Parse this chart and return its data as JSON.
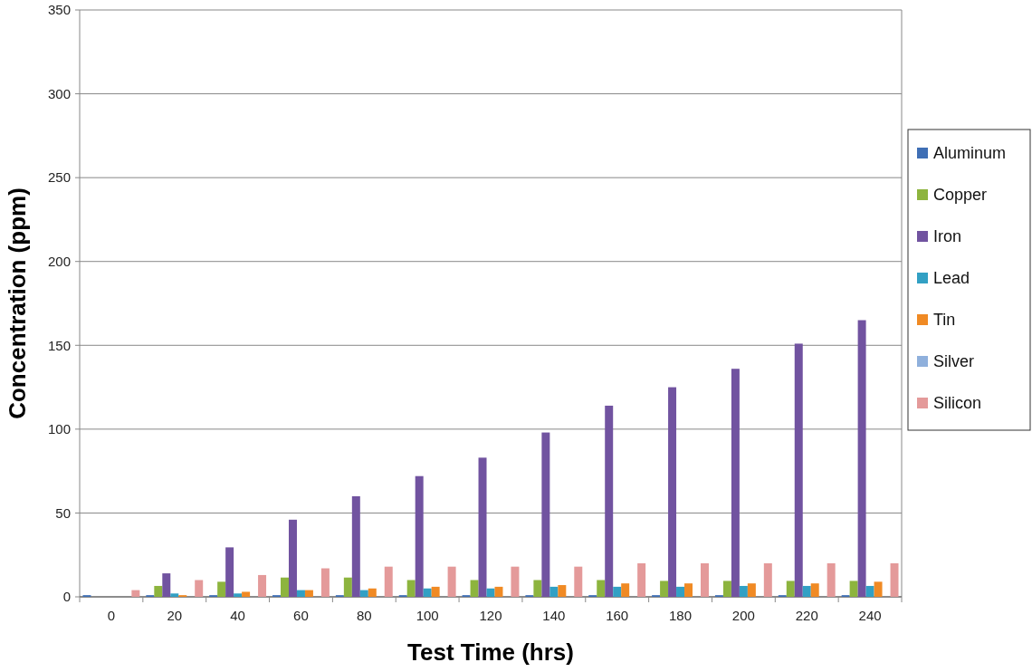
{
  "chart_data": {
    "type": "bar",
    "xlabel": "Test Time (hrs)",
    "ylabel": "Concentration (ppm)",
    "categories": [
      "0",
      "20",
      "40",
      "60",
      "80",
      "100",
      "120",
      "140",
      "160",
      "180",
      "200",
      "220",
      "240"
    ],
    "series": [
      {
        "name": "Aluminum",
        "color": "#3f6fb5",
        "values": [
          1,
          1,
          1,
          1,
          1,
          1,
          1,
          1,
          1,
          1,
          1,
          1,
          1
        ]
      },
      {
        "name": "Copper",
        "color": "#8db43e",
        "values": [
          0,
          6.5,
          9,
          11.5,
          11.5,
          10,
          10,
          10,
          10,
          9.5,
          9.5,
          9.5,
          9.5
        ]
      },
      {
        "name": "Iron",
        "color": "#7153a0",
        "values": [
          0,
          14,
          29.5,
          46,
          60,
          72,
          83,
          98,
          114,
          125,
          136,
          151,
          165
        ]
      },
      {
        "name": "Lead",
        "color": "#32a0c4",
        "values": [
          0,
          2,
          2,
          4,
          4,
          5,
          5,
          6,
          6,
          6,
          6.5,
          6.5,
          6.5
        ]
      },
      {
        "name": "Tin",
        "color": "#f08a24",
        "values": [
          0,
          1,
          3,
          4,
          5,
          6,
          6,
          7,
          8,
          8,
          8,
          8,
          9
        ]
      },
      {
        "name": "Silver",
        "color": "#8fb0dc",
        "values": [
          0,
          0,
          0,
          0,
          0,
          0,
          0,
          0,
          0,
          0,
          0,
          0,
          0
        ]
      },
      {
        "name": "Silicon",
        "color": "#e49a9a",
        "values": [
          4,
          10,
          13,
          17,
          18,
          18,
          18,
          18,
          20,
          20,
          20,
          20,
          20
        ]
      }
    ],
    "ylim": [
      0,
      350
    ],
    "yticks": [
      0,
      50,
      100,
      150,
      200,
      250,
      300,
      350
    ],
    "grid": "y",
    "legend": "right"
  }
}
